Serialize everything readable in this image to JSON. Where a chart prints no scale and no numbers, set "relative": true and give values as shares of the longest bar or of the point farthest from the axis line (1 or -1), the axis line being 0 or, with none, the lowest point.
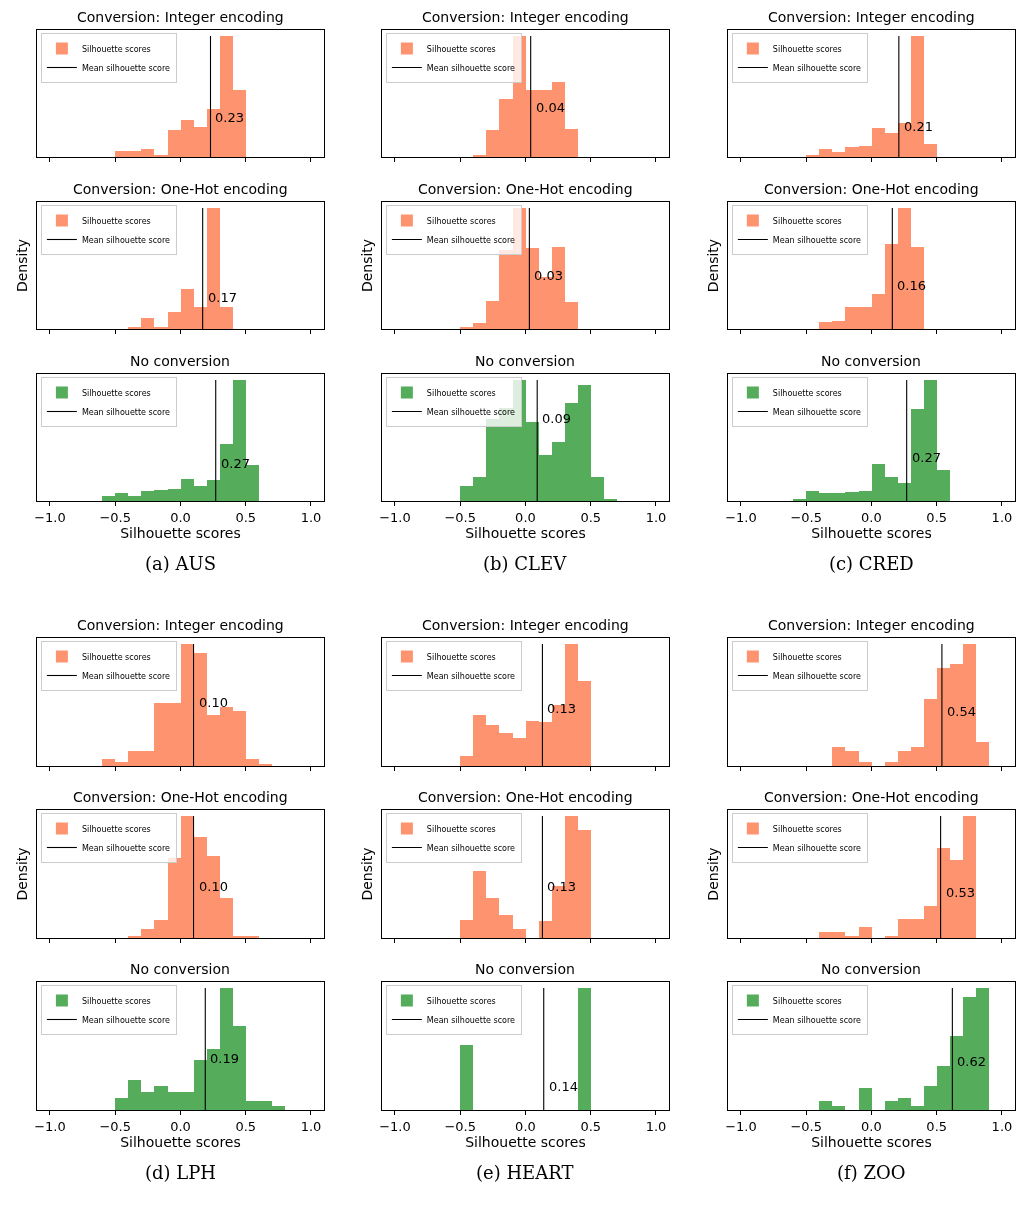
{
  "chart_data": [
    {
      "type": "histogram",
      "title": "Conversion: Integer encoding",
      "relative": true,
      "bins": [
        -0.5,
        -0.4,
        -0.3,
        -0.2,
        -0.1,
        0,
        0.1,
        0.2,
        0.3,
        0.4,
        0.5
      ],
      "xlim": [
        -1.1,
        1.1
      ],
      "xticks": [
        {
          "value": -1,
          "label": null
        },
        {
          "value": -0.5,
          "label": null
        },
        {
          "value": 0,
          "label": null
        },
        {
          "value": 0.5,
          "label": null
        },
        {
          "value": 1,
          "label": null
        }
      ],
      "tick_labels": false,
      "legend": "top left",
      "series": [
        {
          "name": "Silhouette scores",
          "color": "#fd936f",
          "values": [
            0.05,
            0.05,
            0.07,
            0.015,
            0.22,
            0.31,
            0.25,
            0.4,
            1,
            0.55
          ]
        },
        {
          "name": "Mean silhouette score",
          "type": "line",
          "color": "#000000",
          "x": [
            0.23,
            0.23
          ],
          "values": [
            0,
            1
          ]
        }
      ],
      "annotations": [
        {
          "text": "0.23",
          "x": 0.23,
          "y": 0.33
        }
      ]
    },
    {
      "type": "histogram",
      "title": "Conversion: Integer encoding",
      "relative": true,
      "bins": [
        -0.4,
        -0.3,
        -0.2,
        -0.1,
        0,
        0.1,
        0.2,
        0.3,
        0.4
      ],
      "xlim": [
        -1.1,
        1.1
      ],
      "xticks": [
        {
          "value": -1,
          "label": null
        },
        {
          "value": -0.5,
          "label": null
        },
        {
          "value": 0,
          "label": null
        },
        {
          "value": 0.5,
          "label": null
        },
        {
          "value": 1,
          "label": null
        }
      ],
      "tick_labels": false,
      "legend": "top left",
      "series": [
        {
          "name": "Silhouette scores",
          "color": "#fd936f",
          "values": [
            0.01,
            0.22,
            0.48,
            1,
            0.55,
            0.55,
            0.62,
            0.23
          ]
        },
        {
          "name": "Mean silhouette score",
          "type": "line",
          "color": "#000000",
          "x": [
            0.04,
            0.04
          ],
          "values": [
            0,
            1
          ]
        }
      ],
      "annotations": [
        {
          "text": "0.04",
          "x": 0.04,
          "y": 0.41
        }
      ]
    },
    {
      "type": "histogram",
      "title": "Conversion: Integer encoding",
      "relative": true,
      "bins": [
        -0.5,
        -0.4,
        -0.3,
        -0.2,
        -0.1,
        0,
        0.1,
        0.2,
        0.3,
        0.4,
        0.5
      ],
      "xlim": [
        -1.1,
        1.1
      ],
      "xticks": [
        {
          "value": -1,
          "label": null
        },
        {
          "value": -0.5,
          "label": null
        },
        {
          "value": 0,
          "label": null
        },
        {
          "value": 0.5,
          "label": null
        },
        {
          "value": 1,
          "label": null
        }
      ],
      "tick_labels": false,
      "legend": "top left",
      "series": [
        {
          "name": "Silhouette scores",
          "color": "#fd936f",
          "values": [
            0.01,
            0.07,
            0.045,
            0.08,
            0.09,
            0.24,
            0.2,
            0.28,
            1,
            0.11
          ]
        },
        {
          "name": "Mean silhouette score",
          "type": "line",
          "color": "#000000",
          "x": [
            0.21,
            0.21
          ],
          "values": [
            0,
            1
          ]
        }
      ],
      "annotations": [
        {
          "text": "0.21",
          "x": 0.21,
          "y": 0.25
        }
      ]
    },
    {
      "type": "histogram",
      "title": "Conversion: One-Hot encoding",
      "ylabel": "Density",
      "relative": true,
      "bins": [
        -0.4,
        -0.3,
        -0.2,
        -0.1,
        0,
        0.1,
        0.2,
        0.3,
        0.4
      ],
      "xlim": [
        -1.1,
        1.1
      ],
      "xticks": [
        {
          "value": -1,
          "label": null
        },
        {
          "value": -0.5,
          "label": null
        },
        {
          "value": 0,
          "label": null
        },
        {
          "value": 0.5,
          "label": null
        },
        {
          "value": 1,
          "label": null
        }
      ],
      "tick_labels": false,
      "legend": "top left",
      "series": [
        {
          "name": "Silhouette scores",
          "color": "#fd936f",
          "values": [
            0.01,
            0.09,
            0.02,
            0.14,
            0.33,
            0.18,
            1,
            0.18
          ]
        },
        {
          "name": "Mean silhouette score",
          "type": "line",
          "color": "#000000",
          "x": [
            0.17,
            0.17
          ],
          "values": [
            0,
            1
          ]
        }
      ],
      "annotations": [
        {
          "text": "0.17",
          "x": 0.17,
          "y": 0.26
        }
      ]
    },
    {
      "type": "histogram",
      "title": "Conversion: One-Hot encoding",
      "ylabel": "Density",
      "relative": true,
      "bins": [
        -0.5,
        -0.4,
        -0.3,
        -0.2,
        -0.1,
        0,
        0.1,
        0.2,
        0.3,
        0.4
      ],
      "xlim": [
        -1.1,
        1.1
      ],
      "xticks": [
        {
          "value": -1,
          "label": null
        },
        {
          "value": -0.5,
          "label": null
        },
        {
          "value": 0,
          "label": null
        },
        {
          "value": 0.5,
          "label": null
        },
        {
          "value": 1,
          "label": null
        }
      ],
      "tick_labels": false,
      "legend": "top left",
      "series": [
        {
          "name": "Silhouette scores",
          "color": "#fd936f",
          "values": [
            0.01,
            0.05,
            0.23,
            0.65,
            1,
            0.67,
            0.43,
            0.68,
            0.22
          ]
        },
        {
          "name": "Mean silhouette score",
          "type": "line",
          "color": "#000000",
          "x": [
            0.03,
            0.03
          ],
          "values": [
            0,
            1
          ]
        }
      ],
      "annotations": [
        {
          "text": "0.03",
          "x": 0.03,
          "y": 0.44
        }
      ]
    },
    {
      "type": "histogram",
      "title": "Conversion: One-Hot encoding",
      "ylabel": "Density",
      "relative": true,
      "bins": [
        -0.4,
        -0.3,
        -0.2,
        -0.1,
        0,
        0.1,
        0.2,
        0.3,
        0.4
      ],
      "xlim": [
        -1.1,
        1.1
      ],
      "xticks": [
        {
          "value": -1,
          "label": null
        },
        {
          "value": -0.5,
          "label": null
        },
        {
          "value": 0,
          "label": null
        },
        {
          "value": 0.5,
          "label": null
        },
        {
          "value": 1,
          "label": null
        }
      ],
      "tick_labels": false,
      "legend": "top left",
      "series": [
        {
          "name": "Silhouette scores",
          "color": "#fd936f",
          "values": [
            0.06,
            0.07,
            0.18,
            0.18,
            0.29,
            0.7,
            1,
            0.68
          ]
        },
        {
          "name": "Mean silhouette score",
          "type": "line",
          "color": "#000000",
          "x": [
            0.16,
            0.16
          ],
          "values": [
            0,
            1
          ]
        }
      ],
      "annotations": [
        {
          "text": "0.16",
          "x": 0.16,
          "y": 0.36
        }
      ]
    },
    {
      "type": "histogram",
      "title": "No conversion",
      "xlabel": "Silhouette scores",
      "relative": true,
      "bins": [
        -0.6,
        -0.5,
        -0.4,
        -0.3,
        -0.2,
        -0.1,
        0,
        0.1,
        0.2,
        0.3,
        0.4,
        0.5,
        0.6
      ],
      "xlim": [
        -1.1,
        1.1
      ],
      "xticks": [
        {
          "value": -1,
          "label": "−1.0"
        },
        {
          "value": -0.5,
          "label": "−0.5"
        },
        {
          "value": 0,
          "label": "0.0"
        },
        {
          "value": 0.5,
          "label": "0.5"
        },
        {
          "value": 1,
          "label": "1.0"
        }
      ],
      "tick_labels": "x",
      "legend": "top left",
      "series": [
        {
          "name": "Silhouette scores",
          "color": "#55ac5a",
          "values": [
            0.04,
            0.07,
            0.04,
            0.08,
            0.09,
            0.1,
            0.18,
            0.12,
            0.17,
            0.47,
            1,
            0.3
          ]
        },
        {
          "name": "Mean silhouette score",
          "type": "line",
          "color": "#000000",
          "x": [
            0.27,
            0.27
          ],
          "values": [
            0,
            1
          ]
        }
      ],
      "annotations": [
        {
          "text": "0.27",
          "x": 0.27,
          "y": 0.31
        },
        "(a) AUS"
      ]
    },
    {
      "type": "histogram",
      "title": "No conversion",
      "xlabel": "Silhouette scores",
      "relative": true,
      "bins": [
        -0.5,
        -0.4,
        -0.3,
        -0.2,
        -0.1,
        0,
        0.1,
        0.2,
        0.3,
        0.4,
        0.5,
        0.6,
        0.7
      ],
      "xlim": [
        -1.1,
        1.1
      ],
      "xticks": [
        {
          "value": -1,
          "label": "−1.0"
        },
        {
          "value": -0.5,
          "label": "−0.5"
        },
        {
          "value": 0,
          "label": "0.0"
        },
        {
          "value": 0.5,
          "label": "0.5"
        },
        {
          "value": 1,
          "label": "1.0"
        }
      ],
      "tick_labels": "x",
      "legend": "top left",
      "series": [
        {
          "name": "Silhouette scores",
          "color": "#55ac5a",
          "values": [
            0.12,
            0.2,
            0.68,
            0.77,
            1,
            0.65,
            0.38,
            0.49,
            0.81,
            0.96,
            0.2,
            0.015
          ]
        },
        {
          "name": "Mean silhouette score",
          "type": "line",
          "color": "#000000",
          "x": [
            0.09,
            0.09
          ],
          "values": [
            0,
            1
          ]
        }
      ],
      "annotations": [
        {
          "text": "0.09",
          "x": 0.09,
          "y": 0.68
        },
        "(b) CLEV"
      ]
    },
    {
      "type": "histogram",
      "title": "No conversion",
      "xlabel": "Silhouette scores",
      "relative": true,
      "bins": [
        -0.6,
        -0.5,
        -0.4,
        -0.3,
        -0.2,
        -0.1,
        0,
        0.1,
        0.2,
        0.3,
        0.4,
        0.5,
        0.6
      ],
      "xlim": [
        -1.1,
        1.1
      ],
      "xticks": [
        {
          "value": -1,
          "label": "−1.0"
        },
        {
          "value": -0.5,
          "label": "−0.5"
        },
        {
          "value": 0,
          "label": "0.0"
        },
        {
          "value": 0.5,
          "label": "0.5"
        },
        {
          "value": 1,
          "label": "1.0"
        }
      ],
      "tick_labels": "x",
      "legend": "top left",
      "series": [
        {
          "name": "Silhouette scores",
          "color": "#55ac5a",
          "values": [
            0.02,
            0.08,
            0.065,
            0.07,
            0.075,
            0.08,
            0.31,
            0.2,
            0.15,
            0.76,
            1,
            0.26
          ]
        },
        {
          "name": "Mean silhouette score",
          "type": "line",
          "color": "#000000",
          "x": [
            0.27,
            0.27
          ],
          "values": [
            0,
            1
          ]
        }
      ],
      "annotations": [
        {
          "text": "0.27",
          "x": 0.27,
          "y": 0.36
        },
        "(c) CRED"
      ]
    },
    {
      "type": "histogram",
      "title": "Conversion: Integer encoding",
      "relative": true,
      "bins": [
        -0.6,
        -0.5,
        -0.4,
        -0.3,
        -0.2,
        -0.1,
        0,
        0.1,
        0.2,
        0.3,
        0.4,
        0.5,
        0.6,
        0.7
      ],
      "xlim": [
        -1.1,
        1.1
      ],
      "xticks": [
        {
          "value": -1,
          "label": null
        },
        {
          "value": -0.5,
          "label": null
        },
        {
          "value": 0,
          "label": null
        },
        {
          "value": 0.5,
          "label": null
        },
        {
          "value": 1,
          "label": null
        }
      ],
      "tick_labels": false,
      "legend": "top left",
      "series": [
        {
          "name": "Silhouette scores",
          "color": "#fd936f",
          "values": [
            0.06,
            0.03,
            0.12,
            0.12,
            0.52,
            0.52,
            1,
            0.93,
            0.42,
            0.48,
            0.45,
            0.06,
            0.02
          ]
        },
        {
          "name": "Mean silhouette score",
          "type": "line",
          "color": "#000000",
          "x": [
            0.1,
            0.1
          ],
          "values": [
            0,
            1
          ]
        }
      ],
      "annotations": [
        {
          "text": "0.10",
          "x": 0.1,
          "y": 0.52
        }
      ]
    },
    {
      "type": "histogram",
      "title": "Conversion: Integer encoding",
      "relative": true,
      "bins": [
        -0.5,
        -0.4,
        -0.3,
        -0.2,
        -0.1,
        0,
        0.1,
        0.2,
        0.3,
        0.4,
        0.5
      ],
      "xlim": [
        -1.1,
        1.1
      ],
      "xticks": [
        {
          "value": -1,
          "label": null
        },
        {
          "value": -0.5,
          "label": null
        },
        {
          "value": 0,
          "label": null
        },
        {
          "value": 0.5,
          "label": null
        },
        {
          "value": 1,
          "label": null
        }
      ],
      "tick_labels": false,
      "legend": "top left",
      "series": [
        {
          "name": "Silhouette scores",
          "color": "#fd936f",
          "values": [
            0.08,
            0.42,
            0.34,
            0.27,
            0.23,
            0.37,
            0.36,
            0.5,
            1,
            0.7
          ]
        },
        {
          "name": "Mean silhouette score",
          "type": "line",
          "color": "#000000",
          "x": [
            0.13,
            0.13
          ],
          "values": [
            0,
            1
          ]
        }
      ],
      "annotations": [
        {
          "text": "0.13",
          "x": 0.13,
          "y": 0.47
        }
      ]
    },
    {
      "type": "histogram",
      "title": "Conversion: Integer encoding",
      "relative": true,
      "bins": [
        -0.3,
        -0.2,
        -0.1,
        0,
        0.1,
        0.2,
        0.3,
        0.4,
        0.5,
        0.6,
        0.7,
        0.8,
        0.9
      ],
      "xlim": [
        -1.1,
        1.1
      ],
      "xticks": [
        {
          "value": -1,
          "label": null
        },
        {
          "value": -0.5,
          "label": null
        },
        {
          "value": 0,
          "label": null
        },
        {
          "value": 0.5,
          "label": null
        },
        {
          "value": 1,
          "label": null
        }
      ],
      "tick_labels": false,
      "legend": "top left",
      "series": [
        {
          "name": "Silhouette scores",
          "color": "#fd936f",
          "values": [
            0.16,
            0.12,
            0.035,
            0,
            0.035,
            0.12,
            0.16,
            0.55,
            0.8,
            0.84,
            1,
            0.2
          ]
        },
        {
          "name": "Mean silhouette score",
          "type": "line",
          "color": "#000000",
          "x": [
            0.54,
            0.54
          ],
          "values": [
            0,
            1
          ]
        }
      ],
      "annotations": [
        {
          "text": "0.54",
          "x": 0.54,
          "y": 0.45
        }
      ]
    },
    {
      "type": "histogram",
      "title": "Conversion: One-Hot encoding",
      "ylabel": "Density",
      "relative": true,
      "bins": [
        -0.4,
        -0.3,
        -0.2,
        -0.1,
        0,
        0.1,
        0.2,
        0.3,
        0.4,
        0.5,
        0.6
      ],
      "xlim": [
        -1.1,
        1.1
      ],
      "xticks": [
        {
          "value": -1,
          "label": null
        },
        {
          "value": -0.5,
          "label": null
        },
        {
          "value": 0,
          "label": null
        },
        {
          "value": 0.5,
          "label": null
        },
        {
          "value": 1,
          "label": null
        }
      ],
      "tick_labels": false,
      "legend": "top left",
      "series": [
        {
          "name": "Silhouette scores",
          "color": "#fd936f",
          "values": [
            0.02,
            0.07,
            0.15,
            0.66,
            1,
            0.83,
            0.67,
            0.33,
            0.02,
            0.02
          ]
        },
        {
          "name": "Mean silhouette score",
          "type": "line",
          "color": "#000000",
          "x": [
            0.1,
            0.1
          ],
          "values": [
            0,
            1
          ]
        }
      ],
      "annotations": [
        {
          "text": "0.10",
          "x": 0.1,
          "y": 0.42
        }
      ]
    },
    {
      "type": "histogram",
      "title": "Conversion: One-Hot encoding",
      "ylabel": "Density",
      "relative": true,
      "bins": [
        -0.5,
        -0.4,
        -0.3,
        -0.2,
        -0.1,
        0,
        0.1,
        0.2,
        0.3,
        0.4,
        0.5
      ],
      "xlim": [
        -1.1,
        1.1
      ],
      "xticks": [
        {
          "value": -1,
          "label": null
        },
        {
          "value": -0.5,
          "label": null
        },
        {
          "value": 0,
          "label": null
        },
        {
          "value": 0.5,
          "label": null
        },
        {
          "value": 1,
          "label": null
        }
      ],
      "tick_labels": false,
      "legend": "top left",
      "series": [
        {
          "name": "Silhouette scores",
          "color": "#fd936f",
          "values": [
            0.15,
            0.55,
            0.33,
            0.19,
            0.07,
            0,
            0.14,
            0.43,
            1,
            0.89
          ]
        },
        {
          "name": "Mean silhouette score",
          "type": "line",
          "color": "#000000",
          "x": [
            0.13,
            0.13
          ],
          "values": [
            0,
            1
          ]
        }
      ],
      "annotations": [
        {
          "text": "0.13",
          "x": 0.13,
          "y": 0.42
        }
      ]
    },
    {
      "type": "histogram",
      "title": "Conversion: One-Hot encoding",
      "ylabel": "Density",
      "relative": true,
      "bins": [
        -0.4,
        -0.3,
        -0.2,
        -0.1,
        0,
        0.1,
        0.2,
        0.3,
        0.4,
        0.5,
        0.6,
        0.7,
        0.8
      ],
      "xlim": [
        -1.1,
        1.1
      ],
      "xticks": [
        {
          "value": -1,
          "label": null
        },
        {
          "value": -0.5,
          "label": null
        },
        {
          "value": 0,
          "label": null
        },
        {
          "value": 0.5,
          "label": null
        },
        {
          "value": 1,
          "label": null
        }
      ],
      "tick_labels": false,
      "legend": "top left",
      "series": [
        {
          "name": "Silhouette scores",
          "color": "#fd936f",
          "values": [
            0.05,
            0.05,
            0.02,
            0.09,
            0,
            0.02,
            0.16,
            0.16,
            0.26,
            0.74,
            0.64,
            1
          ]
        },
        {
          "name": "Mean silhouette score",
          "type": "line",
          "color": "#000000",
          "x": [
            0.53,
            0.53
          ],
          "values": [
            0,
            1
          ]
        }
      ],
      "annotations": [
        {
          "text": "0.53",
          "x": 0.53,
          "y": 0.37
        }
      ]
    },
    {
      "type": "histogram",
      "title": "No conversion",
      "xlabel": "Silhouette scores",
      "relative": true,
      "bins": [
        -0.5,
        -0.4,
        -0.3,
        -0.2,
        -0.1,
        0,
        0.1,
        0.2,
        0.3,
        0.4,
        0.5,
        0.6,
        0.7,
        0.8
      ],
      "xlim": [
        -1.1,
        1.1
      ],
      "xticks": [
        {
          "value": -1,
          "label": "−1.0"
        },
        {
          "value": -0.5,
          "label": "−0.5"
        },
        {
          "value": 0,
          "label": "0.0"
        },
        {
          "value": 0.5,
          "label": "0.5"
        },
        {
          "value": 1,
          "label": "1.0"
        }
      ],
      "tick_labels": "x",
      "legend": "top left",
      "series": [
        {
          "name": "Silhouette scores",
          "color": "#55ac5a",
          "values": [
            0.1,
            0.25,
            0.15,
            0.2,
            0.15,
            0.15,
            0.41,
            0.5,
            1,
            0.69,
            0.07,
            0.07,
            0.03
          ]
        },
        {
          "name": "Mean silhouette score",
          "type": "line",
          "color": "#000000",
          "x": [
            0.19,
            0.19
          ],
          "values": [
            0,
            1
          ]
        }
      ],
      "annotations": [
        {
          "text": "0.19",
          "x": 0.19,
          "y": 0.42
        },
        "(d) LPH"
      ]
    },
    {
      "type": "histogram",
      "title": "No conversion",
      "xlabel": "Silhouette scores",
      "relative": true,
      "bins": [
        -0.5,
        -0.4,
        -0.3,
        -0.2,
        -0.1,
        0,
        0.1,
        0.2,
        0.3,
        0.4,
        0.5
      ],
      "xlim": [
        -1.1,
        1.1
      ],
      "xticks": [
        {
          "value": -1,
          "label": "−1.0"
        },
        {
          "value": -0.5,
          "label": "−0.5"
        },
        {
          "value": 0,
          "label": "0.0"
        },
        {
          "value": 0.5,
          "label": "0.5"
        },
        {
          "value": 1,
          "label": "1.0"
        }
      ],
      "tick_labels": "x",
      "legend": "top left",
      "series": [
        {
          "name": "Silhouette scores",
          "color": "#55ac5a",
          "values": [
            0.53,
            0,
            0,
            0,
            0,
            0,
            0,
            0,
            0,
            1
          ]
        },
        {
          "name": "Mean silhouette score",
          "type": "line",
          "color": "#000000",
          "x": [
            0.14,
            0.14
          ],
          "values": [
            0,
            1
          ]
        }
      ],
      "annotations": [
        {
          "text": "0.14",
          "x": 0.14,
          "y": 0.19
        },
        "(e) HEART"
      ]
    },
    {
      "type": "histogram",
      "title": "No conversion",
      "xlabel": "Silhouette scores",
      "relative": true,
      "bins": [
        -0.4,
        -0.3,
        -0.2,
        -0.1,
        0,
        0.1,
        0.2,
        0.3,
        0.4,
        0.5,
        0.6,
        0.7,
        0.8,
        0.9
      ],
      "xlim": [
        -1.1,
        1.1
      ],
      "xticks": [
        {
          "value": -1,
          "label": "−1.0"
        },
        {
          "value": -0.5,
          "label": "−0.5"
        },
        {
          "value": 0,
          "label": "0.0"
        },
        {
          "value": 0.5,
          "label": "0.5"
        },
        {
          "value": 1,
          "label": "1.0"
        }
      ],
      "tick_labels": "x",
      "legend": "top left",
      "series": [
        {
          "name": "Silhouette scores",
          "color": "#55ac5a",
          "values": [
            0.07,
            0.03,
            0,
            0.18,
            0,
            0.07,
            0.1,
            0.03,
            0.2,
            0.36,
            0.61,
            0.93,
            1
          ]
        },
        {
          "name": "Mean silhouette score",
          "type": "line",
          "color": "#000000",
          "x": [
            0.62,
            0.62
          ],
          "values": [
            0,
            1
          ]
        }
      ],
      "annotations": [
        {
          "text": "0.62",
          "x": 0.62,
          "y": 0.4
        },
        "(f) ZOO"
      ]
    }
  ]
}
